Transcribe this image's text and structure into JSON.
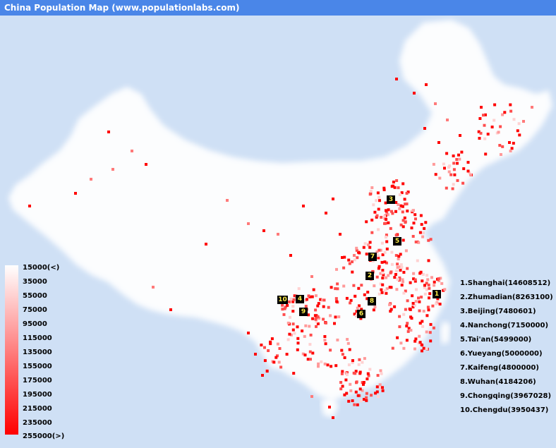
{
  "window": {
    "title": "China Population Map (www.populationlabs.com)"
  },
  "colors": {
    "titlebar": "#4a86e8",
    "background": "#cfe0f5",
    "low": "#ffffff",
    "high": "#ff0000"
  },
  "legend": {
    "labels": [
      "15000(<)",
      "35000",
      "55000",
      "75000",
      "95000",
      "115000",
      "135000",
      "155000",
      "175000",
      "195000",
      "215000",
      "235000",
      "255000(>)"
    ]
  },
  "ranking": [
    {
      "label": "1.Shanghai(14608512)"
    },
    {
      "label": "2.Zhumadian(8263100)"
    },
    {
      "label": "3.Beijing(7480601)"
    },
    {
      "label": "4.Nanchong(7150000)"
    },
    {
      "label": "5.Tai'an(5499000)"
    },
    {
      "label": "6.Yueyang(5000000)"
    },
    {
      "label": "7.Kaifeng(4800000)"
    },
    {
      "label": "8.Wuhan(4184206)"
    },
    {
      "label": "9.Chongqing(3967028)"
    },
    {
      "label": "10.Chengdu(3950437)"
    }
  ],
  "markers": [
    "1",
    "2",
    "3",
    "4",
    "5",
    "6",
    "7",
    "8",
    "9",
    "10"
  ]
}
